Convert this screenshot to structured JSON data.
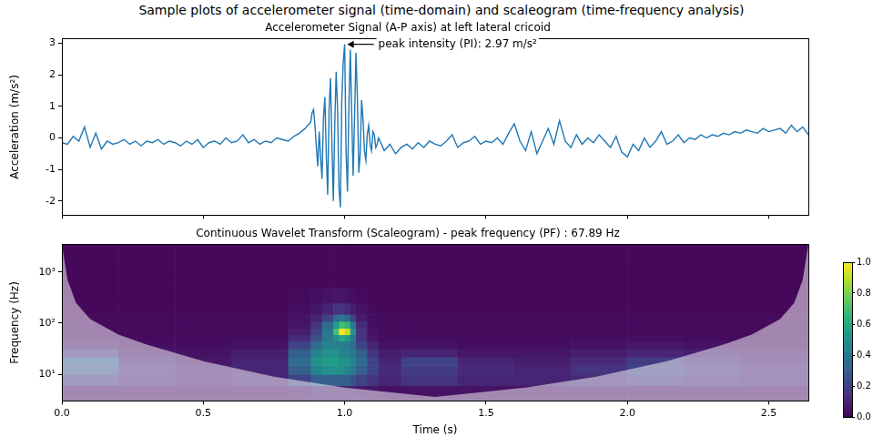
{
  "title": "Sample plots of accelerometer signal (time-domain) and scaleogram (time-frequency analysis)",
  "chart_data": [
    {
      "type": "line",
      "title": "Accelerometer Signal (A-P axis) at left lateral cricoid",
      "ylabel": "Acceleration (m/s²)",
      "color": "#1f77b4",
      "grid": false,
      "tick_labels": "y",
      "xlim": [
        0,
        2.64
      ],
      "xticks": [
        0,
        0.5,
        1,
        1.5,
        2,
        2.5
      ],
      "ylim": [
        -2.45,
        3.15
      ],
      "yticks": [
        -2,
        -1,
        0,
        1,
        2,
        3
      ],
      "annotations": [
        {
          "text": "peak intensity (PI): 2.97 m/s²",
          "x": 1.0,
          "y": 2.97
        }
      ],
      "x": [
        0,
        0.02,
        0.04,
        0.06,
        0.08,
        0.1,
        0.12,
        0.14,
        0.16,
        0.18,
        0.2,
        0.22,
        0.24,
        0.26,
        0.28,
        0.3,
        0.32,
        0.34,
        0.36,
        0.38,
        0.4,
        0.42,
        0.44,
        0.46,
        0.48,
        0.5,
        0.52,
        0.54,
        0.56,
        0.58,
        0.6,
        0.62,
        0.64,
        0.66,
        0.68,
        0.7,
        0.72,
        0.74,
        0.76,
        0.78,
        0.8,
        0.82,
        0.84,
        0.86,
        0.88,
        0.885,
        0.89,
        0.895,
        0.9,
        0.905,
        0.91,
        0.915,
        0.92,
        0.925,
        0.93,
        0.935,
        0.94,
        0.945,
        0.95,
        0.955,
        0.96,
        0.965,
        0.97,
        0.975,
        0.98,
        0.985,
        0.99,
        0.995,
        1.0,
        1.005,
        1.01,
        1.015,
        1.02,
        1.025,
        1.03,
        1.035,
        1.04,
        1.045,
        1.05,
        1.055,
        1.06,
        1.065,
        1.07,
        1.075,
        1.08,
        1.085,
        1.09,
        1.095,
        1.1,
        1.105,
        1.11,
        1.115,
        1.12,
        1.14,
        1.16,
        1.18,
        1.2,
        1.22,
        1.24,
        1.26,
        1.28,
        1.3,
        1.32,
        1.34,
        1.36,
        1.38,
        1.4,
        1.42,
        1.44,
        1.46,
        1.48,
        1.5,
        1.52,
        1.54,
        1.56,
        1.58,
        1.6,
        1.62,
        1.64,
        1.66,
        1.68,
        1.7,
        1.72,
        1.74,
        1.76,
        1.78,
        1.8,
        1.82,
        1.84,
        1.86,
        1.88,
        1.9,
        1.92,
        1.94,
        1.96,
        1.98,
        2.0,
        2.02,
        2.04,
        2.06,
        2.08,
        2.1,
        2.12,
        2.14,
        2.16,
        2.18,
        2.2,
        2.22,
        2.24,
        2.26,
        2.28,
        2.3,
        2.32,
        2.34,
        2.36,
        2.38,
        2.4,
        2.42,
        2.44,
        2.46,
        2.48,
        2.5,
        2.52,
        2.54,
        2.56,
        2.58,
        2.6,
        2.62,
        2.64
      ],
      "values": [
        -0.15,
        -0.2,
        0.05,
        -0.1,
        0.35,
        -0.3,
        0.15,
        -0.35,
        -0.1,
        -0.2,
        -0.15,
        -0.05,
        -0.2,
        -0.1,
        -0.25,
        -0.1,
        -0.15,
        -0.05,
        -0.2,
        -0.1,
        -0.15,
        -0.25,
        -0.1,
        -0.2,
        -0.05,
        -0.3,
        -0.15,
        -0.1,
        -0.2,
        0.0,
        -0.15,
        -0.1,
        0.1,
        -0.15,
        -0.05,
        -0.2,
        -0.1,
        -0.15,
        0.0,
        -0.05,
        -0.1,
        0.05,
        0.15,
        0.3,
        0.5,
        0.8,
        0.9,
        0.4,
        -0.3,
        -0.9,
        0.2,
        -0.6,
        -1.3,
        0.6,
        1.3,
        -0.5,
        -1.8,
        0.9,
        1.9,
        -0.2,
        -2.0,
        0.4,
        2.1,
        0.9,
        -1.6,
        -2.2,
        1.2,
        2.4,
        2.97,
        -0.4,
        -1.7,
        1.0,
        2.8,
        0.8,
        -1.2,
        0.6,
        2.7,
        1.3,
        -1.1,
        -0.5,
        1.2,
        0.6,
        -0.4,
        -0.7,
        0.1,
        0.4,
        -0.2,
        -0.4,
        0.2,
        0.1,
        -0.3,
        -0.2,
        0.0,
        -0.4,
        -0.2,
        -0.5,
        -0.3,
        -0.2,
        -0.35,
        -0.15,
        -0.3,
        -0.1,
        -0.2,
        -0.25,
        -0.1,
        0.1,
        -0.3,
        -0.15,
        -0.1,
        0.05,
        -0.2,
        -0.1,
        -0.15,
        0.0,
        -0.2,
        0.15,
        0.45,
        -0.1,
        -0.4,
        0.2,
        -0.5,
        -0.1,
        0.3,
        -0.2,
        0.55,
        -0.1,
        -0.3,
        0.1,
        -0.2,
        0.0,
        -0.15,
        0.1,
        -0.1,
        -0.3,
        0.05,
        -0.45,
        -0.6,
        -0.2,
        -0.4,
        0.0,
        -0.3,
        -0.1,
        0.2,
        -0.2,
        -0.1,
        0.1,
        -0.15,
        0.0,
        -0.05,
        0.1,
        0.0,
        0.1,
        0.05,
        0.15,
        0.1,
        0.2,
        0.15,
        0.25,
        0.2,
        0.15,
        0.3,
        0.2,
        0.25,
        0.3,
        0.15,
        0.4,
        0.2,
        0.35,
        0.1
      ]
    },
    {
      "type": "heatmap",
      "title": "Continuous Wavelet Transform (Scaleogram) - peak frequency (PF) : 67.89 Hz",
      "xlabel": "Time (s)",
      "ylabel": "Frequency (Hz)",
      "log": "y",
      "grid": false,
      "xlim": [
        0,
        2.64
      ],
      "xticks": [
        {
          "value": 0,
          "label": "0.0"
        },
        0.5,
        {
          "value": 1,
          "label": "1.0"
        },
        1.5,
        {
          "value": 2,
          "label": "2.0"
        },
        2.5
      ],
      "ylim": [
        3,
        3500
      ],
      "yticks": [
        {
          "value": 10,
          "label": "10¹"
        },
        {
          "value": 100,
          "label": "10²"
        },
        {
          "value": 1000,
          "label": "10³"
        }
      ],
      "x_edges": [
        0,
        0.2,
        0.4,
        0.6,
        0.8,
        0.88,
        0.92,
        0.96,
        0.98,
        1.0,
        1.02,
        1.04,
        1.08,
        1.12,
        1.2,
        1.4,
        1.6,
        1.8,
        2.0,
        2.2,
        2.4,
        2.64
      ],
      "y_edges": [
        3,
        6,
        10,
        15,
        22,
        32,
        45,
        60,
        80,
        110,
        150,
        250,
        500,
        1000,
        3500
      ],
      "cells": [
        [
          0.05,
          0.05,
          0.05,
          0.05,
          0.06,
          0.08,
          0.08,
          0.08,
          0.08,
          0.08,
          0.08,
          0.07,
          0.06,
          0.05,
          0.05,
          0.05,
          0.05,
          0.05,
          0.05,
          0.05,
          0.05
        ],
        [
          0.15,
          0.1,
          0.08,
          0.1,
          0.2,
          0.3,
          0.3,
          0.3,
          0.3,
          0.3,
          0.25,
          0.2,
          0.15,
          0.1,
          0.15,
          0.1,
          0.1,
          0.12,
          0.15,
          0.12,
          0.1
        ],
        [
          0.25,
          0.12,
          0.08,
          0.1,
          0.3,
          0.45,
          0.5,
          0.5,
          0.5,
          0.45,
          0.4,
          0.3,
          0.2,
          0.12,
          0.18,
          0.12,
          0.1,
          0.15,
          0.2,
          0.15,
          0.1
        ],
        [
          0.3,
          0.1,
          0.06,
          0.1,
          0.35,
          0.5,
          0.55,
          0.55,
          0.5,
          0.5,
          0.45,
          0.35,
          0.2,
          0.1,
          0.2,
          0.1,
          0.08,
          0.12,
          0.18,
          0.12,
          0.08
        ],
        [
          0.15,
          0.06,
          0.05,
          0.08,
          0.3,
          0.45,
          0.5,
          0.5,
          0.45,
          0.45,
          0.4,
          0.3,
          0.15,
          0.08,
          0.1,
          0.06,
          0.06,
          0.08,
          0.1,
          0.08,
          0.06
        ],
        [
          0.06,
          0.04,
          0.04,
          0.05,
          0.2,
          0.35,
          0.45,
          0.45,
          0.45,
          0.4,
          0.35,
          0.2,
          0.1,
          0.05,
          0.05,
          0.04,
          0.04,
          0.05,
          0.06,
          0.05,
          0.04
        ],
        [
          0.04,
          0.03,
          0.03,
          0.04,
          0.12,
          0.25,
          0.4,
          0.5,
          0.6,
          0.55,
          0.4,
          0.15,
          0.06,
          0.04,
          0.04,
          0.03,
          0.03,
          0.04,
          0.04,
          0.03,
          0.03
        ],
        [
          0.03,
          0.03,
          0.03,
          0.03,
          0.08,
          0.2,
          0.4,
          0.7,
          1.0,
          0.9,
          0.5,
          0.15,
          0.05,
          0.03,
          0.03,
          0.03,
          0.03,
          0.03,
          0.03,
          0.03,
          0.03
        ],
        [
          0.03,
          0.03,
          0.03,
          0.03,
          0.06,
          0.15,
          0.35,
          0.55,
          0.7,
          0.65,
          0.4,
          0.12,
          0.04,
          0.03,
          0.03,
          0.03,
          0.03,
          0.03,
          0.03,
          0.03,
          0.03
        ],
        [
          0.03,
          0.03,
          0.03,
          0.03,
          0.05,
          0.1,
          0.2,
          0.35,
          0.4,
          0.35,
          0.2,
          0.08,
          0.04,
          0.03,
          0.03,
          0.03,
          0.03,
          0.03,
          0.03,
          0.03,
          0.03
        ],
        [
          0.02,
          0.02,
          0.02,
          0.02,
          0.04,
          0.06,
          0.1,
          0.15,
          0.15,
          0.12,
          0.08,
          0.05,
          0.03,
          0.02,
          0.02,
          0.02,
          0.02,
          0.02,
          0.02,
          0.02,
          0.02
        ],
        [
          0.02,
          0.02,
          0.02,
          0.02,
          0.03,
          0.04,
          0.05,
          0.06,
          0.06,
          0.05,
          0.04,
          0.03,
          0.02,
          0.02,
          0.02,
          0.02,
          0.02,
          0.02,
          0.02,
          0.02,
          0.02
        ],
        [
          0.02,
          0.02,
          0.02,
          0.02,
          0.02,
          0.02,
          0.02,
          0.02,
          0.02,
          0.02,
          0.02,
          0.02,
          0.02,
          0.02,
          0.02,
          0.02,
          0.02,
          0.02,
          0.02,
          0.02,
          0.02
        ],
        [
          0.02,
          0.02,
          0.02,
          0.02,
          0.02,
          0.02,
          0.02,
          0.02,
          0.02,
          0.02,
          0.02,
          0.02,
          0.02,
          0.02,
          0.02,
          0.02,
          0.02,
          0.02,
          0.02,
          0.02,
          0.02
        ]
      ],
      "cone_of_influence": {
        "x": [
          0,
          0.02,
          0.05,
          0.1,
          0.2,
          0.3,
          0.5,
          0.75,
          1.0,
          1.32,
          1.64,
          1.89,
          2.14,
          2.34,
          2.44,
          2.54,
          2.59,
          2.62,
          2.64
        ],
        "freq": [
          3500,
          700,
          250,
          120,
          60,
          38,
          18,
          9,
          5.5,
          3.6,
          5.5,
          9,
          18,
          38,
          60,
          120,
          250,
          700,
          3500
        ]
      },
      "colorbar": {
        "range": [
          0,
          1
        ],
        "ticks": [
          {
            "value": 0,
            "label": "0.0"
          },
          0.2,
          0.4,
          0.6,
          0.8,
          {
            "value": 1,
            "label": "1.0"
          }
        ]
      }
    }
  ]
}
